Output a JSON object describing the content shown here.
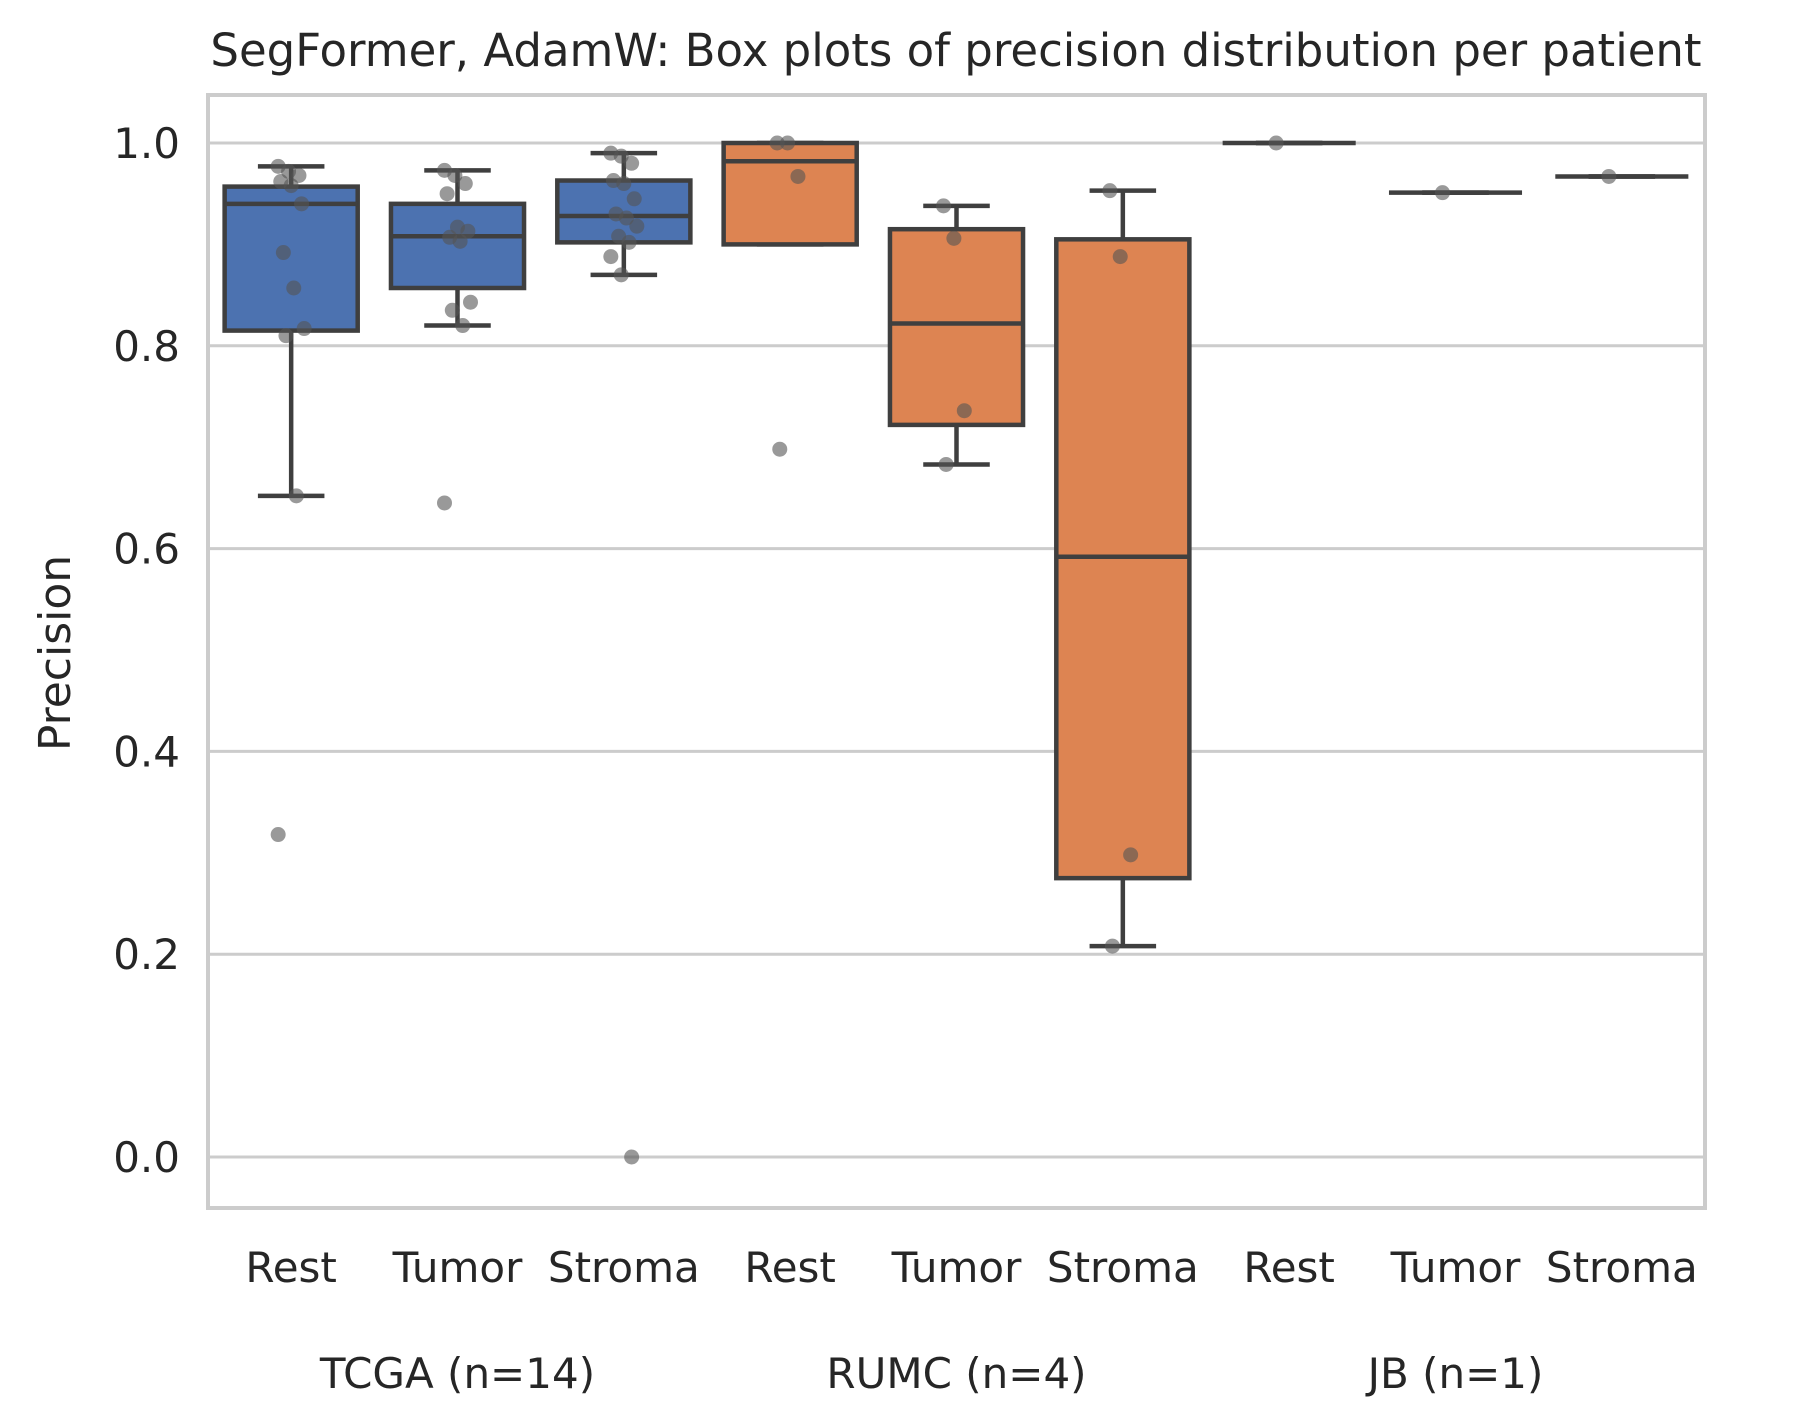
{
  "chart_data": {
    "type": "box",
    "title": "SegFormer, AdamW: Box plots of precision distribution per patient",
    "xlabel": "",
    "ylabel": "Precision",
    "ylim": [
      -0.05,
      1.05
    ],
    "yticks": [
      "0.0",
      "0.2",
      "0.4",
      "0.6",
      "0.8",
      "1.0"
    ],
    "ytick_values": [
      0.0,
      0.2,
      0.4,
      0.6,
      0.8,
      1.0
    ],
    "grid": true,
    "colors": {
      "TCGA": "#4c72b0",
      "RUMC": "#dd8452",
      "JB": "#dd8452",
      "line": "#3f3f3f",
      "grid": "#cccccc",
      "point": "#555555"
    },
    "groups": [
      {
        "label": "TCGA (n=14)",
        "key": "TCGA",
        "categories": [
          "Rest",
          "Tumor",
          "Stroma"
        ]
      },
      {
        "label": "RUMC (n=4)",
        "key": "RUMC",
        "categories": [
          "Rest",
          "Tumor",
          "Stroma"
        ]
      },
      {
        "label": "JB (n=1)",
        "key": "JB",
        "categories": [
          "Rest",
          "Tumor",
          "Stroma"
        ]
      }
    ],
    "boxes": [
      {
        "group": "TCGA",
        "category": "Rest",
        "whisker_low": 0.652,
        "q1": 0.815,
        "median": 0.94,
        "q3": 0.957,
        "whisker_high": 0.977,
        "points": [
          0.977,
          0.972,
          0.968,
          0.962,
          0.958,
          0.94,
          0.892,
          0.857,
          0.817,
          0.81,
          0.652,
          0.318
        ]
      },
      {
        "group": "TCGA",
        "category": "Tumor",
        "whisker_low": 0.82,
        "q1": 0.857,
        "median": 0.908,
        "q3": 0.94,
        "whisker_high": 0.973,
        "points": [
          0.973,
          0.968,
          0.96,
          0.95,
          0.917,
          0.913,
          0.907,
          0.903,
          0.843,
          0.835,
          0.82,
          0.645
        ]
      },
      {
        "group": "TCGA",
        "category": "Stroma",
        "whisker_low": 0.87,
        "q1": 0.902,
        "median": 0.928,
        "q3": 0.963,
        "whisker_high": 0.99,
        "points": [
          0.99,
          0.987,
          0.98,
          0.963,
          0.96,
          0.945,
          0.93,
          0.926,
          0.918,
          0.908,
          0.902,
          0.888,
          0.87,
          0.0
        ]
      },
      {
        "group": "RUMC",
        "category": "Rest",
        "whisker_low": 0.9,
        "q1": 0.9,
        "median": 0.982,
        "q3": 1.0,
        "whisker_high": 1.0,
        "points": [
          1.0,
          1.0,
          0.967,
          0.698
        ]
      },
      {
        "group": "RUMC",
        "category": "Tumor",
        "whisker_low": 0.683,
        "q1": 0.722,
        "median": 0.822,
        "q3": 0.915,
        "whisker_high": 0.938,
        "points": [
          0.938,
          0.906,
          0.736,
          0.683
        ]
      },
      {
        "group": "RUMC",
        "category": "Stroma",
        "whisker_low": 0.208,
        "q1": 0.275,
        "median": 0.592,
        "q3": 0.905,
        "whisker_high": 0.953,
        "points": [
          0.953,
          0.888,
          0.298,
          0.208
        ]
      },
      {
        "group": "JB",
        "category": "Rest",
        "whisker_low": 1.0,
        "q1": 1.0,
        "median": 1.0,
        "q3": 1.0,
        "whisker_high": 1.0,
        "points": [
          1.0
        ]
      },
      {
        "group": "JB",
        "category": "Tumor",
        "whisker_low": 0.951,
        "q1": 0.951,
        "median": 0.951,
        "q3": 0.951,
        "whisker_high": 0.951,
        "points": [
          0.951
        ]
      },
      {
        "group": "JB",
        "category": "Stroma",
        "whisker_low": 0.967,
        "q1": 0.967,
        "median": 0.967,
        "q3": 0.967,
        "whisker_high": 0.967,
        "points": [
          0.967
        ]
      }
    ]
  }
}
